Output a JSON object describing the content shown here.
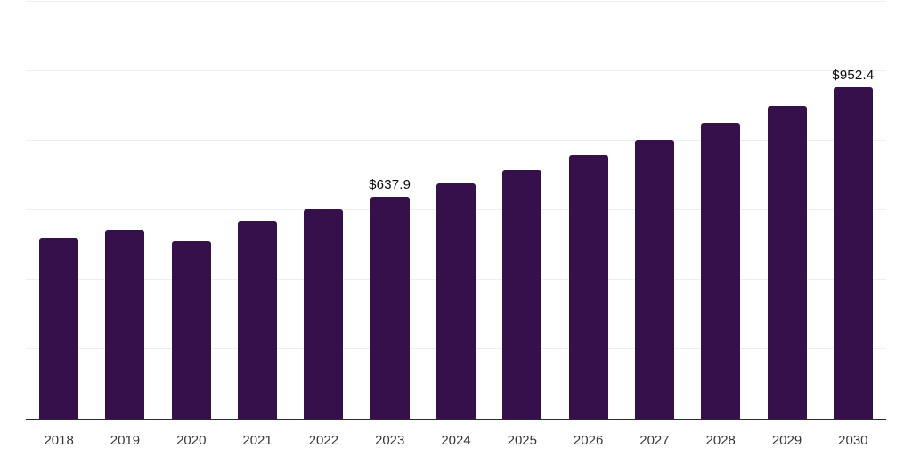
{
  "chart_data": {
    "type": "bar",
    "title": "",
    "xlabel": "",
    "ylabel": "",
    "categories": [
      "2018",
      "2019",
      "2020",
      "2021",
      "2022",
      "2023",
      "2024",
      "2025",
      "2026",
      "2027",
      "2028",
      "2029",
      "2030"
    ],
    "values": [
      520.4,
      543.5,
      510.2,
      569.1,
      601.1,
      637.9,
      675.5,
      715.2,
      757.3,
      802.0,
      849.2,
      899.2,
      952.4
    ],
    "value_labels": {
      "2023": "$637.9",
      "2030": "$952.4"
    },
    "ylim": [
      0,
      1200
    ],
    "gridline_step": 200,
    "grid": true,
    "legend": "none",
    "y_axis_tick_labels_visible": false,
    "bar_color": "#35104B",
    "gridline_color": "#eeeeee",
    "axis_color": "#2b2b2b",
    "x_label_color": "#383838",
    "value_label_color": "#0a0a0a"
  }
}
